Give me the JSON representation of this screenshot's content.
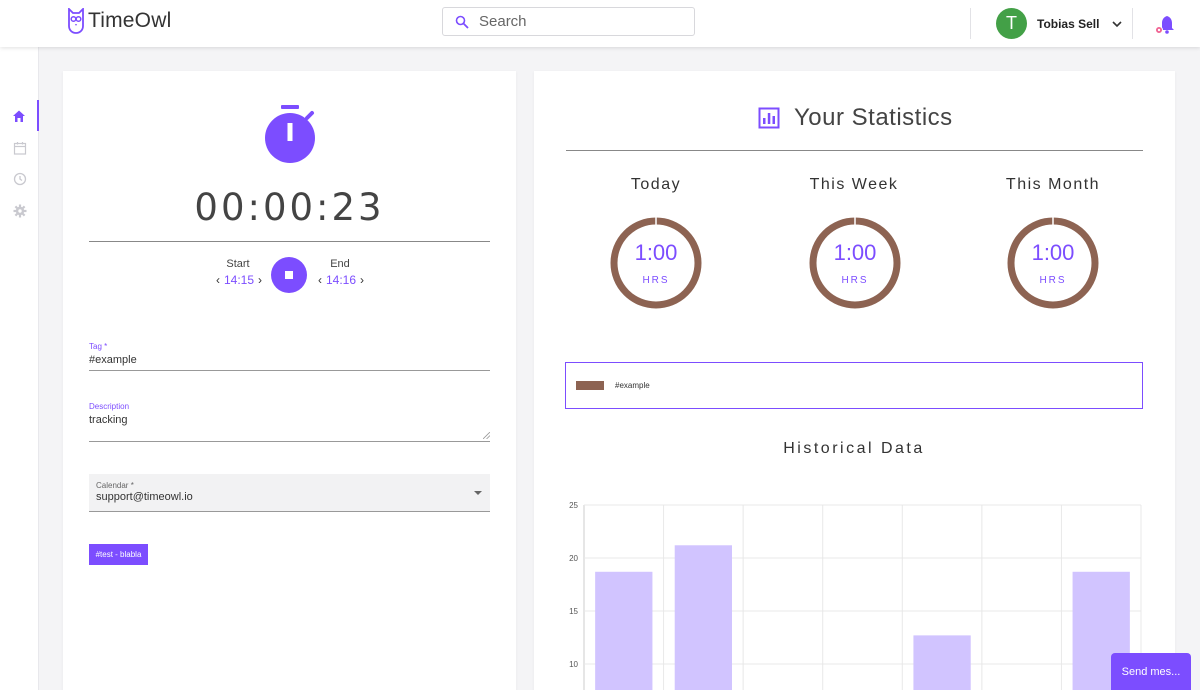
{
  "app": {
    "name": "TimeOwl"
  },
  "search": {
    "placeholder": "Search"
  },
  "user": {
    "initial": "T",
    "name": "Tobias Sell",
    "avatar_color": "#43a047"
  },
  "sidebar": {
    "items": [
      {
        "icon": "home-icon",
        "active": true
      },
      {
        "icon": "calendar-icon",
        "active": false
      },
      {
        "icon": "history-icon",
        "active": false
      },
      {
        "icon": "gear-icon",
        "active": false
      }
    ]
  },
  "tracker": {
    "timer": "00:00:23",
    "start_label": "Start",
    "start_value": "14:15",
    "end_label": "End",
    "end_value": "14:16",
    "tag_label": "Tag *",
    "tag_value": "#example",
    "description_label": "Description",
    "description_value": "tracking",
    "calendar_label": "Calendar *",
    "calendar_value": "support@timeowl.io",
    "chip_label": "#test - blabla"
  },
  "stats": {
    "title": "Your Statistics",
    "periods": [
      {
        "label": "Today",
        "value": "1:00",
        "unit": "HRS"
      },
      {
        "label": "This Week",
        "value": "1:00",
        "unit": "HRS"
      },
      {
        "label": "This Month",
        "value": "1:00",
        "unit": "HRS"
      }
    ],
    "legend": [
      {
        "name": "#example",
        "color": "#8d6352"
      }
    ],
    "historical_title": "Historical Data"
  },
  "chart_data": {
    "type": "bar",
    "title": "Historical Data",
    "yticks": [
      25,
      20,
      15,
      10
    ],
    "ylim": [
      0,
      25
    ],
    "values": [
      18.7,
      21.2,
      0,
      0,
      12.7,
      0,
      18.7
    ],
    "grid": true,
    "bar_color": "#d1c4ff"
  },
  "chat": {
    "send_label": "Send mes..."
  },
  "colors": {
    "accent": "#7c4dff",
    "ring": "#8d6352"
  }
}
